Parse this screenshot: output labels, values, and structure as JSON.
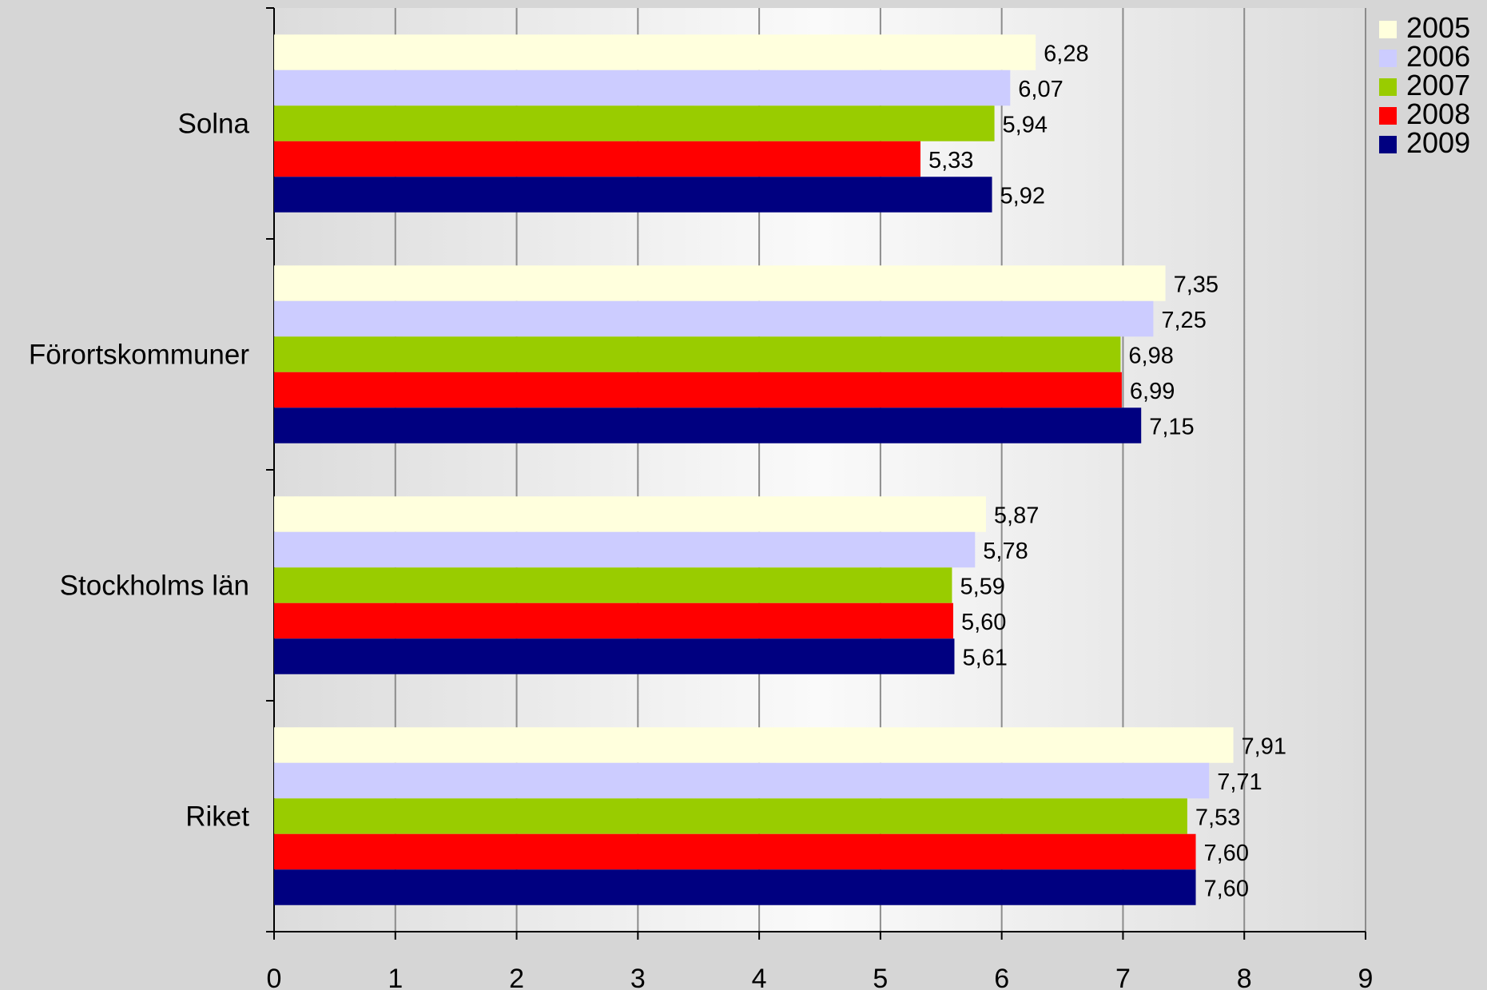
{
  "colors": {
    "background": "#d6d6d6",
    "gridline": "#8c8c8c",
    "axis": "#000000",
    "text": "#000000"
  },
  "chart_data": {
    "type": "bar",
    "orientation": "horizontal",
    "title": "",
    "xlabel": "",
    "ylabel": "",
    "xlim": [
      0,
      9
    ],
    "x_ticks": [
      "0",
      "1",
      "2",
      "3",
      "4",
      "5",
      "6",
      "7",
      "8",
      "9"
    ],
    "grid": "vertical",
    "legend_position": "top-right",
    "categories": [
      "Solna",
      "Förortskommuner",
      "Stockholms län",
      "Riket"
    ],
    "series": [
      {
        "name": "2005",
        "color": "#ffffdd",
        "values": [
          6.28,
          7.35,
          5.87,
          7.91
        ],
        "labels": [
          "6,28",
          "7,35",
          "5,87",
          "7,91"
        ]
      },
      {
        "name": "2006",
        "color": "#ccccff",
        "values": [
          6.07,
          7.25,
          5.78,
          7.71
        ],
        "labels": [
          "6,07",
          "7,25",
          "5,78",
          "7,71"
        ]
      },
      {
        "name": "2007",
        "color": "#99cc00",
        "values": [
          5.94,
          6.98,
          5.59,
          7.53
        ],
        "labels": [
          "5,94",
          "6,98",
          "5,59",
          "7,53"
        ]
      },
      {
        "name": "2008",
        "color": "#ff0000",
        "values": [
          5.33,
          6.99,
          5.6,
          7.6
        ],
        "labels": [
          "5,33",
          "6,99",
          "5,60",
          "7,60"
        ]
      },
      {
        "name": "2009",
        "color": "#000080",
        "values": [
          5.92,
          7.15,
          5.61,
          7.6
        ],
        "labels": [
          "5,92",
          "7,15",
          "5,61",
          "7,60"
        ]
      }
    ]
  }
}
